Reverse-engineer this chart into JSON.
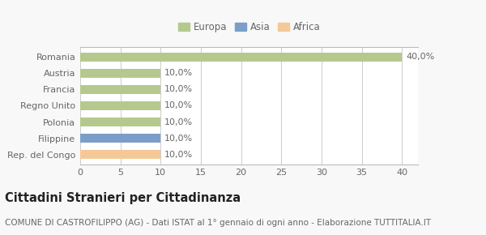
{
  "categories": [
    "Rep. del Congo",
    "Filippine",
    "Polonia",
    "Regno Unito",
    "Francia",
    "Austria",
    "Romania"
  ],
  "values": [
    10.0,
    10.0,
    10.0,
    10.0,
    10.0,
    10.0,
    40.0
  ],
  "colors": [
    "#f5c897",
    "#7b9ec9",
    "#b5c98e",
    "#b5c98e",
    "#b5c98e",
    "#b5c98e",
    "#b5c98e"
  ],
  "bar_labels": [
    "10,0%",
    "10,0%",
    "10,0%",
    "10,0%",
    "10,0%",
    "10,0%",
    "40,0%"
  ],
  "legend_labels": [
    "Europa",
    "Asia",
    "Africa"
  ],
  "legend_colors": [
    "#b5c98e",
    "#7b9ec9",
    "#f5c897"
  ],
  "xlim": [
    0,
    42
  ],
  "xticks": [
    0,
    5,
    10,
    15,
    20,
    25,
    30,
    35,
    40
  ],
  "title": "Cittadini Stranieri per Cittadinanza",
  "subtitle": "COMUNE DI CASTROFILIPPO (AG) - Dati ISTAT al 1° gennaio di ogni anno - Elaborazione TUTTITALIA.IT",
  "bg_color": "#f8f8f8",
  "plot_bg_color": "#ffffff",
  "title_fontsize": 10.5,
  "subtitle_fontsize": 7.5,
  "label_fontsize": 8,
  "tick_fontsize": 8,
  "bar_height": 0.55
}
